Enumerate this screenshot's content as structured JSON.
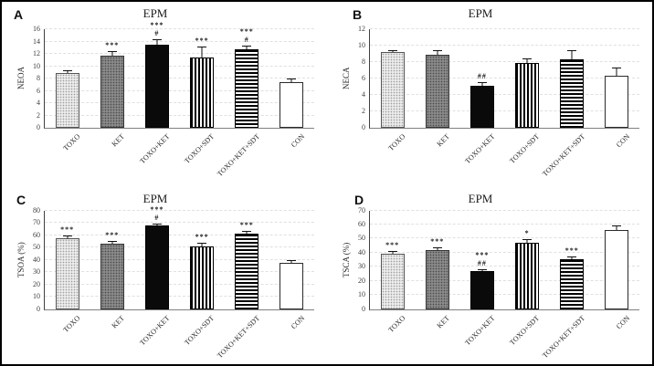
{
  "figure": {
    "border_color": "#000000",
    "background": "#ffffff",
    "panel_letters": [
      "A",
      "B",
      "C",
      "D"
    ]
  },
  "styles": {
    "gridline_color": "#e0e0e0",
    "axis_color": "#404040",
    "bar_fill_light_gray": "#ececec",
    "bar_fill_dark_gray": "#8a8a8a",
    "bar_fill_black": "#0a0a0a",
    "bar_fill_white": "#ffffff"
  },
  "chart_data": [
    {
      "type": "bar",
      "panel_label": "A",
      "title": "EPM",
      "ylabel": "NEOA",
      "ylim": [
        0,
        16
      ],
      "ytick_step": 2,
      "grid": true,
      "categories": [
        "TOXO",
        "KET",
        "TOXO+KET",
        "TOXO+SDT",
        "TOXO+KET+SDT",
        "CON"
      ],
      "values": [
        8.9,
        11.7,
        13.5,
        11.4,
        12.7,
        7.4
      ],
      "errors": [
        0.4,
        0.7,
        0.9,
        1.8,
        0.7,
        0.6
      ],
      "annotations": [
        [],
        [
          "***"
        ],
        [
          "***",
          "#"
        ],
        [
          "***"
        ],
        [
          "***",
          "#"
        ],
        []
      ],
      "bar_styles": [
        "s-light",
        "s-dark",
        "s-black",
        "s-vstripe",
        "s-hstripe",
        "s-white"
      ]
    },
    {
      "type": "bar",
      "panel_label": "B",
      "title": "EPM",
      "ylabel": "NECA",
      "ylim": [
        0,
        12
      ],
      "ytick_step": 2,
      "grid": true,
      "categories": [
        "TOXO",
        "KET",
        "TOXO+KET",
        "TOXO+SDT",
        "TOXO+KET+SDT",
        "CON"
      ],
      "values": [
        9.2,
        8.9,
        5.1,
        7.9,
        8.3,
        6.3
      ],
      "errors": [
        0.3,
        0.6,
        0.5,
        0.6,
        1.1,
        1.0
      ],
      "annotations": [
        [],
        [],
        [
          "##"
        ],
        [],
        [],
        []
      ],
      "bar_styles": [
        "s-light",
        "s-dark",
        "s-black",
        "s-vstripe",
        "s-hstripe",
        "s-white"
      ]
    },
    {
      "type": "bar",
      "panel_label": "C",
      "title": "EPM",
      "ylabel": "TSOA (%)",
      "ylim": [
        0,
        80
      ],
      "ytick_step": 10,
      "grid": true,
      "categories": [
        "TOXO",
        "KET",
        "TOXO+KET",
        "TOXO+SDT",
        "TOXO+KET+SDT",
        "CON"
      ],
      "values": [
        57.5,
        53,
        68,
        51,
        61,
        37.5
      ],
      "errors": [
        2.5,
        2.5,
        1.5,
        3,
        2.5,
        2.5
      ],
      "annotations": [
        [
          "***"
        ],
        [
          "***"
        ],
        [
          "***",
          "#"
        ],
        [
          "***"
        ],
        [
          "***"
        ],
        []
      ],
      "bar_styles": [
        "s-light",
        "s-dark",
        "s-black",
        "s-vstripe",
        "s-hstripe",
        "s-white"
      ]
    },
    {
      "type": "bar",
      "panel_label": "D",
      "title": "EPM",
      "ylabel": "TSCA (%)",
      "ylim": [
        0,
        70
      ],
      "ytick_step": 10,
      "grid": true,
      "categories": [
        "TOXO",
        "KET",
        "TOXO+KET",
        "TOXO+SDT",
        "TOXO+KET+SDT",
        "CON"
      ],
      "values": [
        39.5,
        42,
        27,
        47,
        35.5,
        56
      ],
      "errors": [
        1.5,
        2,
        1.5,
        2.5,
        1.5,
        3
      ],
      "annotations": [
        [
          "***"
        ],
        [
          "***"
        ],
        [
          "***",
          "##"
        ],
        [
          "*"
        ],
        [
          "***"
        ],
        []
      ],
      "bar_styles": [
        "s-light",
        "s-dark",
        "s-black",
        "s-vstripe",
        "s-hstripe",
        "s-white"
      ]
    }
  ]
}
